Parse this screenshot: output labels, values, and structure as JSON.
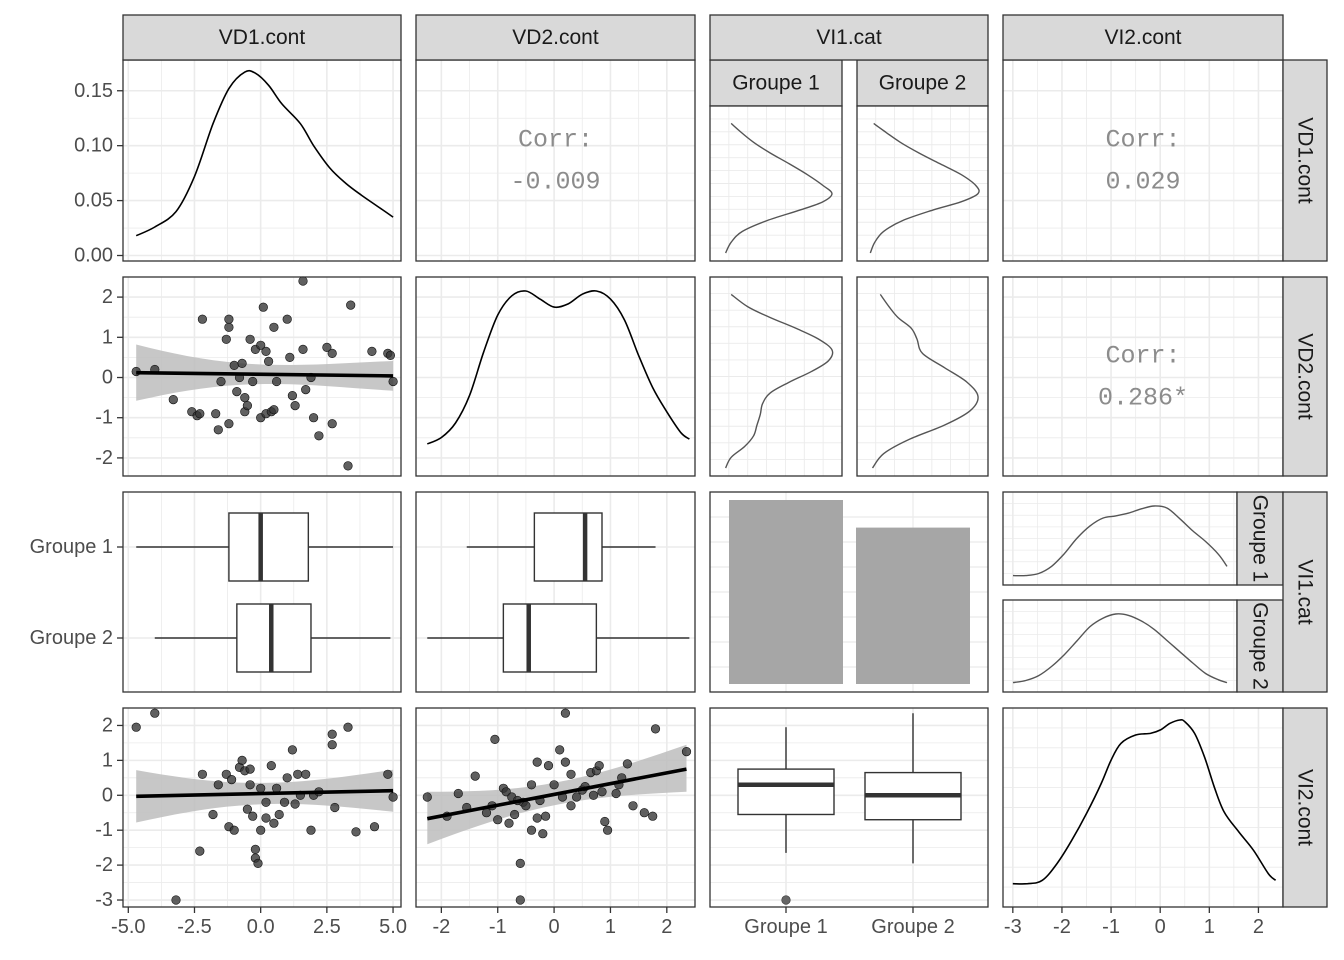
{
  "chart_data": {
    "type": "scatterplot-matrix",
    "variables": [
      "VD1.cont",
      "VD2.cont",
      "VI1.cat",
      "VI2.cont"
    ],
    "groups": [
      "Groupe 1",
      "Groupe 2"
    ],
    "correlations": [
      {
        "pair": [
          "VD1.cont",
          "VD2.cont"
        ],
        "label": "Corr:",
        "value": "-0.009"
      },
      {
        "pair": [
          "VD1.cont",
          "VI2.cont"
        ],
        "label": "Corr:",
        "value": "0.029"
      },
      {
        "pair": [
          "VD2.cont",
          "VI2.cont"
        ],
        "label": "Corr:",
        "value": "0.286*"
      }
    ],
    "axes": {
      "VD1.cont": {
        "range": [
          -5.2,
          5.3
        ],
        "ticks": [
          "-5.0",
          "-2.5",
          "0.0",
          "2.5",
          "5.0"
        ]
      },
      "VD2.cont": {
        "range": [
          -2.45,
          2.5
        ],
        "ticks": [
          "-2",
          "-1",
          "0",
          "1",
          "2"
        ]
      },
      "VI2.cont": {
        "range": [
          -3.2,
          2.5
        ],
        "ticks": [
          "-3",
          "-2",
          "-1",
          "0",
          "1",
          "2"
        ]
      },
      "density_VD1": {
        "range": [
          -0.005,
          0.178
        ],
        "ticks": [
          "0.00",
          "0.05",
          "0.10",
          "0.15"
        ]
      }
    },
    "density_VD1": {
      "x": [
        -4.7,
        -4.0,
        -3.2,
        -2.5,
        -1.8,
        -1.2,
        -0.6,
        -0.2,
        0.3,
        0.8,
        1.5,
        2.0,
        2.6,
        3.2,
        3.8,
        4.4,
        5.0
      ],
      "y": [
        0.018,
        0.026,
        0.04,
        0.072,
        0.12,
        0.152,
        0.167,
        0.166,
        0.155,
        0.138,
        0.12,
        0.1,
        0.08,
        0.066,
        0.055,
        0.045,
        0.035
      ]
    },
    "density_VD2": {
      "x": [
        -2.25,
        -2.0,
        -1.75,
        -1.5,
        -1.25,
        -1.0,
        -0.75,
        -0.5,
        -0.25,
        0.0,
        0.25,
        0.5,
        0.75,
        1.0,
        1.25,
        1.5,
        1.75,
        2.0,
        2.25,
        2.4
      ],
      "y": [
        0.05,
        0.09,
        0.18,
        0.35,
        0.62,
        0.85,
        0.97,
        1.0,
        0.95,
        0.9,
        0.92,
        0.98,
        1.0,
        0.95,
        0.82,
        0.6,
        0.4,
        0.25,
        0.12,
        0.08
      ]
    },
    "density_VI2": {
      "x": [
        -3.0,
        -2.7,
        -2.4,
        -2.1,
        -1.8,
        -1.5,
        -1.2,
        -1.0,
        -0.8,
        -0.5,
        -0.2,
        0.0,
        0.2,
        0.4,
        0.5,
        0.7,
        0.9,
        1.1,
        1.3,
        1.6,
        1.9,
        2.2,
        2.35
      ],
      "y": [
        0.02,
        0.02,
        0.04,
        0.14,
        0.28,
        0.44,
        0.62,
        0.76,
        0.86,
        0.91,
        0.92,
        0.94,
        0.98,
        1.0,
        0.99,
        0.92,
        0.78,
        0.6,
        0.45,
        0.33,
        0.22,
        0.08,
        0.04
      ]
    },
    "scatter_VD1_VD2": [
      [
        -4.7,
        0.15
      ],
      [
        -4.0,
        0.2
      ],
      [
        -3.3,
        -0.55
      ],
      [
        -2.6,
        -0.85
      ],
      [
        -2.4,
        -0.95
      ],
      [
        -2.3,
        -0.9
      ],
      [
        -2.2,
        1.45
      ],
      [
        -1.7,
        -0.9
      ],
      [
        -1.6,
        -1.3
      ],
      [
        -1.5,
        -0.1
      ],
      [
        -1.3,
        0.95
      ],
      [
        -1.2,
        1.25
      ],
      [
        -1.2,
        -1.15
      ],
      [
        -1.2,
        1.45
      ],
      [
        -1.0,
        0.3
      ],
      [
        -0.9,
        -0.35
      ],
      [
        -0.8,
        0.0
      ],
      [
        -0.7,
        0.35
      ],
      [
        -0.6,
        -0.5
      ],
      [
        -0.6,
        -0.85
      ],
      [
        -0.5,
        -0.7
      ],
      [
        -0.4,
        0.95
      ],
      [
        -0.3,
        -0.1
      ],
      [
        -0.2,
        0.7
      ],
      [
        0.0,
        0.8
      ],
      [
        0.0,
        -1.0
      ],
      [
        0.1,
        1.75
      ],
      [
        0.2,
        0.65
      ],
      [
        0.2,
        -0.9
      ],
      [
        0.3,
        0.4
      ],
      [
        0.4,
        -0.85
      ],
      [
        0.5,
        -0.8
      ],
      [
        0.5,
        1.25
      ],
      [
        0.6,
        -0.1
      ],
      [
        1.0,
        1.45
      ],
      [
        1.1,
        0.5
      ],
      [
        1.2,
        -0.45
      ],
      [
        1.3,
        -0.7
      ],
      [
        1.6,
        0.7
      ],
      [
        1.6,
        2.4
      ],
      [
        1.7,
        -0.3
      ],
      [
        1.9,
        0.0
      ],
      [
        2.0,
        -1.0
      ],
      [
        2.2,
        -1.45
      ],
      [
        2.5,
        0.75
      ],
      [
        2.7,
        0.6
      ],
      [
        2.7,
        -1.15
      ],
      [
        3.3,
        -2.2
      ],
      [
        3.4,
        1.8
      ],
      [
        4.2,
        0.65
      ],
      [
        4.8,
        0.6
      ],
      [
        4.9,
        0.55
      ],
      [
        5.0,
        -0.1
      ]
    ],
    "smooth_VD1_VD2": {
      "x": [
        -4.7,
        5.0
      ],
      "y": [
        0.12,
        0.04
      ],
      "band_lo": [
        -0.58,
        -0.33
      ],
      "band_hi": [
        0.82,
        0.41
      ]
    },
    "scatter_VD1_VI2": [
      [
        -4.7,
        1.95
      ],
      [
        -4.0,
        2.35
      ],
      [
        -3.2,
        -3.0
      ],
      [
        -2.3,
        -1.6
      ],
      [
        -2.2,
        0.6
      ],
      [
        -1.8,
        -0.55
      ],
      [
        -1.6,
        0.3
      ],
      [
        -1.3,
        0.6
      ],
      [
        -1.2,
        -0.9
      ],
      [
        -1.1,
        0.45
      ],
      [
        -1.0,
        -1.0
      ],
      [
        -0.8,
        0.8
      ],
      [
        -0.7,
        1.0
      ],
      [
        -0.6,
        0.7
      ],
      [
        -0.5,
        -0.4
      ],
      [
        -0.4,
        0.3
      ],
      [
        -0.4,
        0.75
      ],
      [
        -0.3,
        -0.6
      ],
      [
        -0.2,
        -1.8
      ],
      [
        -0.2,
        -1.55
      ],
      [
        -0.1,
        -1.95
      ],
      [
        0.0,
        0.2
      ],
      [
        0.0,
        -1.0
      ],
      [
        0.2,
        -0.65
      ],
      [
        0.2,
        -0.2
      ],
      [
        0.4,
        0.85
      ],
      [
        0.5,
        -0.8
      ],
      [
        0.6,
        0.2
      ],
      [
        0.7,
        -0.55
      ],
      [
        0.9,
        -0.2
      ],
      [
        1.0,
        0.5
      ],
      [
        1.2,
        1.3
      ],
      [
        1.3,
        -0.25
      ],
      [
        1.4,
        0.6
      ],
      [
        1.5,
        0.0
      ],
      [
        1.7,
        0.6
      ],
      [
        1.9,
        -1.0
      ],
      [
        2.0,
        0.0
      ],
      [
        2.2,
        0.1
      ],
      [
        2.7,
        1.75
      ],
      [
        2.7,
        1.45
      ],
      [
        2.8,
        -0.35
      ],
      [
        3.3,
        1.95
      ],
      [
        3.6,
        -1.05
      ],
      [
        4.3,
        -0.9
      ],
      [
        4.8,
        0.6
      ],
      [
        5.0,
        -0.05
      ]
    ],
    "smooth_VD1_VI2": {
      "x": [
        -4.7,
        5.0
      ],
      "y": [
        -0.03,
        0.13
      ],
      "band_lo": [
        -0.78,
        -0.47
      ],
      "band_hi": [
        0.72,
        0.73
      ]
    },
    "scatter_VD2_VI2": [
      [
        -2.25,
        -0.05
      ],
      [
        -1.9,
        -0.6
      ],
      [
        -1.7,
        0.05
      ],
      [
        -1.55,
        -0.35
      ],
      [
        -1.4,
        0.55
      ],
      [
        -1.2,
        -0.5
      ],
      [
        -1.1,
        -0.3
      ],
      [
        -1.0,
        -0.7
      ],
      [
        -0.9,
        0.2
      ],
      [
        -0.85,
        0.1
      ],
      [
        -0.8,
        -0.8
      ],
      [
        -0.75,
        -0.05
      ],
      [
        -0.7,
        -0.55
      ],
      [
        -0.65,
        -0.15
      ],
      [
        -0.55,
        -0.2
      ],
      [
        -0.5,
        -0.3
      ],
      [
        -0.4,
        0.3
      ],
      [
        -0.4,
        -1.0
      ],
      [
        -0.3,
        0.95
      ],
      [
        -0.25,
        -0.15
      ],
      [
        -0.2,
        -1.1
      ],
      [
        -0.15,
        -0.6
      ],
      [
        -0.1,
        0.85
      ],
      [
        0.0,
        0.3
      ],
      [
        0.1,
        1.3
      ],
      [
        0.15,
        -0.05
      ],
      [
        0.2,
        0.95
      ],
      [
        0.3,
        0.6
      ],
      [
        0.3,
        -0.3
      ],
      [
        0.4,
        -0.05
      ],
      [
        0.5,
        0.15
      ],
      [
        0.55,
        0.25
      ],
      [
        0.65,
        0.65
      ],
      [
        0.7,
        0.0
      ],
      [
        0.75,
        0.7
      ],
      [
        0.8,
        0.85
      ],
      [
        0.85,
        0.1
      ],
      [
        0.9,
        -0.75
      ],
      [
        0.95,
        -1.0
      ],
      [
        1.1,
        0.05
      ],
      [
        1.15,
        0.3
      ],
      [
        1.2,
        0.5
      ],
      [
        1.3,
        0.9
      ],
      [
        1.4,
        -0.3
      ],
      [
        1.6,
        -0.5
      ],
      [
        1.75,
        -0.6
      ],
      [
        1.8,
        1.9
      ],
      [
        2.35,
        1.25
      ],
      [
        -1.05,
        1.6
      ],
      [
        -0.6,
        -1.95
      ],
      [
        -0.3,
        -0.65
      ],
      [
        0.2,
        2.35
      ],
      [
        -0.6,
        -3.0
      ]
    ],
    "smooth_VD2_VI2": {
      "x": [
        -2.25,
        2.35
      ],
      "y": [
        -0.67,
        0.75
      ],
      "band_lo": [
        -1.4,
        0.1
      ],
      "band_hi": [
        0.1,
        1.45
      ]
    },
    "boxplots_VD1": [
      {
        "group": "Groupe 1",
        "whisker_lo": -4.7,
        "q1": -1.2,
        "median": 0.0,
        "q3": 1.8,
        "whisker_hi": 5.0
      },
      {
        "group": "Groupe 2",
        "whisker_lo": -4.0,
        "q1": -0.9,
        "median": 0.4,
        "q3": 1.9,
        "whisker_hi": 4.9
      }
    ],
    "boxplots_VD2": [
      {
        "group": "Groupe 1",
        "whisker_lo": -1.55,
        "q1": -0.35,
        "median": 0.55,
        "q3": 0.85,
        "whisker_hi": 1.8
      },
      {
        "group": "Groupe 2",
        "whisker_lo": -2.25,
        "q1": -0.9,
        "median": -0.45,
        "q3": 0.75,
        "whisker_hi": 2.4
      }
    ],
    "boxplots_VI2": [
      {
        "group": "Groupe 1",
        "whisker_lo": -1.65,
        "q1": -0.55,
        "median": 0.3,
        "q3": 0.75,
        "whisker_hi": 1.95,
        "outliers": [
          -3.0
        ]
      },
      {
        "group": "Groupe 2",
        "whisker_lo": -1.95,
        "q1": -0.7,
        "median": 0.0,
        "q3": 0.65,
        "whisker_hi": 2.35,
        "outliers": []
      }
    ],
    "counts": [
      {
        "group": "Groupe 1",
        "proportion": 1.0
      },
      {
        "group": "Groupe 2",
        "proportion": 0.85
      }
    ],
    "grouped_density_VD1": {
      "Groupe 1": {
        "pos": [
          0.0,
          0.08,
          0.16,
          0.24,
          0.32,
          0.38,
          0.44,
          0.5,
          0.58,
          0.66,
          0.74,
          0.82,
          0.9,
          0.96
        ],
        "dens": [
          0.05,
          0.1,
          0.2,
          0.42,
          0.72,
          0.92,
          1.0,
          0.92,
          0.78,
          0.62,
          0.45,
          0.3,
          0.18,
          0.1
        ]
      },
      "Groupe 2": {
        "pos": [
          0.0,
          0.08,
          0.16,
          0.24,
          0.32,
          0.38,
          0.44,
          0.5,
          0.58,
          0.66,
          0.74,
          0.82,
          0.9,
          0.96
        ],
        "dens": [
          0.03,
          0.07,
          0.15,
          0.32,
          0.6,
          0.85,
          1.0,
          0.98,
          0.85,
          0.66,
          0.47,
          0.3,
          0.16,
          0.06
        ]
      }
    },
    "grouped_density_VD2": {
      "Groupe 1": {
        "pos": [
          0.0,
          0.06,
          0.12,
          0.18,
          0.24,
          0.3,
          0.36,
          0.42,
          0.48,
          0.54,
          0.6,
          0.66,
          0.72,
          0.78,
          0.84,
          0.9,
          0.97
        ],
        "dens": [
          0.05,
          0.1,
          0.22,
          0.3,
          0.33,
          0.36,
          0.38,
          0.45,
          0.62,
          0.82,
          0.97,
          1.0,
          0.88,
          0.68,
          0.45,
          0.25,
          0.1
        ]
      },
      "Groupe 2": {
        "pos": [
          0.0,
          0.08,
          0.16,
          0.24,
          0.32,
          0.4,
          0.48,
          0.56,
          0.64,
          0.72,
          0.78,
          0.84,
          0.9,
          0.97
        ],
        "dens": [
          0.05,
          0.15,
          0.38,
          0.7,
          0.93,
          1.0,
          0.9,
          0.7,
          0.5,
          0.45,
          0.4,
          0.28,
          0.2,
          0.12
        ]
      }
    },
    "grouped_density_VI2": {
      "Groupe 1": {
        "pos": [
          0.0,
          0.06,
          0.12,
          0.18,
          0.24,
          0.3,
          0.36,
          0.42,
          0.48,
          0.54,
          0.6,
          0.66,
          0.72,
          0.78,
          0.84,
          0.9,
          0.96,
          1.0
        ],
        "dens": [
          0.02,
          0.02,
          0.05,
          0.15,
          0.33,
          0.55,
          0.72,
          0.83,
          0.86,
          0.9,
          0.96,
          1.0,
          0.97,
          0.82,
          0.65,
          0.5,
          0.32,
          0.15
        ]
      },
      "Groupe 2": {
        "pos": [
          0.0,
          0.06,
          0.12,
          0.18,
          0.24,
          0.3,
          0.36,
          0.42,
          0.48,
          0.54,
          0.6,
          0.66,
          0.72,
          0.78,
          0.84,
          0.9,
          0.96,
          1.0
        ],
        "dens": [
          0.02,
          0.05,
          0.12,
          0.25,
          0.42,
          0.62,
          0.82,
          0.94,
          1.0,
          0.98,
          0.9,
          0.78,
          0.62,
          0.46,
          0.3,
          0.15,
          0.06,
          0.02
        ]
      }
    },
    "colors": {
      "panel_border": "#333333",
      "strip_fill": "#d9d9d9",
      "grid": "#ebebeb",
      "points": "#333333",
      "band": "#bdbdbd",
      "bar": "#a6a6a6",
      "corr_text": "#8c8c8c"
    }
  }
}
